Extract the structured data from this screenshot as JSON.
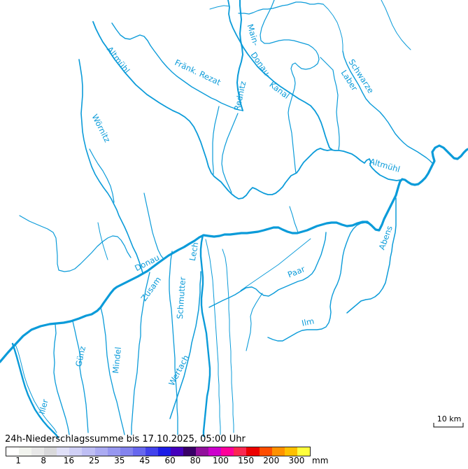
{
  "map": {
    "river_color": "#0b9bd9",
    "labels": [
      {
        "id": "altmuehl-upper",
        "text": "Altmühl"
      },
      {
        "id": "woernitz",
        "text": "Wörnitz"
      },
      {
        "id": "fraenk-rezat",
        "text": "Fränk. Rezat"
      },
      {
        "id": "main",
        "text": "Main-"
      },
      {
        "id": "donau-kanal",
        "text": "Donau-"
      },
      {
        "id": "kanal",
        "text": "Kanal"
      },
      {
        "id": "rednitz",
        "text": "Rednitz"
      },
      {
        "id": "schwarze",
        "text": "Schwarze"
      },
      {
        "id": "laber",
        "text": "Laber"
      },
      {
        "id": "altmuehl-mid",
        "text": "Altmühl"
      },
      {
        "id": "donau",
        "text": "Donau"
      },
      {
        "id": "lech",
        "text": "Lech"
      },
      {
        "id": "zusam",
        "text": "Zusam"
      },
      {
        "id": "schmutter",
        "text": "Schmutter"
      },
      {
        "id": "wertach",
        "text": "Wertach"
      },
      {
        "id": "iller",
        "text": "Iller"
      },
      {
        "id": "guenz",
        "text": "Günz"
      },
      {
        "id": "mindel",
        "text": "Mindel"
      },
      {
        "id": "paar",
        "text": "Paar"
      },
      {
        "id": "ilm",
        "text": "Ilm"
      },
      {
        "id": "abens",
        "text": "Abens"
      }
    ],
    "scale_bar": {
      "label": "10 km"
    }
  },
  "legend": {
    "title": "24h-Niederschlagssumme bis 17.10.2025, 05:00 Uhr",
    "unit": "mm",
    "ticks": [
      "1",
      "8",
      "16",
      "25",
      "35",
      "45",
      "60",
      "80",
      "100",
      "150",
      "200",
      "300"
    ],
    "colors": [
      "#ffffff",
      "#f2f4ef",
      "#e8e8e8",
      "#d9d9db",
      "#e0e0f8",
      "#d0d0f6",
      "#bebef4",
      "#ababf2",
      "#9797f0",
      "#8383ee",
      "#6767ee",
      "#4242ec",
      "#1c1ce6",
      "#4400bc",
      "#380066",
      "#92109c",
      "#cc00cc",
      "#ff0099",
      "#fa2850",
      "#ec0000",
      "#ff4d00",
      "#ff9100",
      "#ffc000",
      "#ffff3c"
    ]
  }
}
